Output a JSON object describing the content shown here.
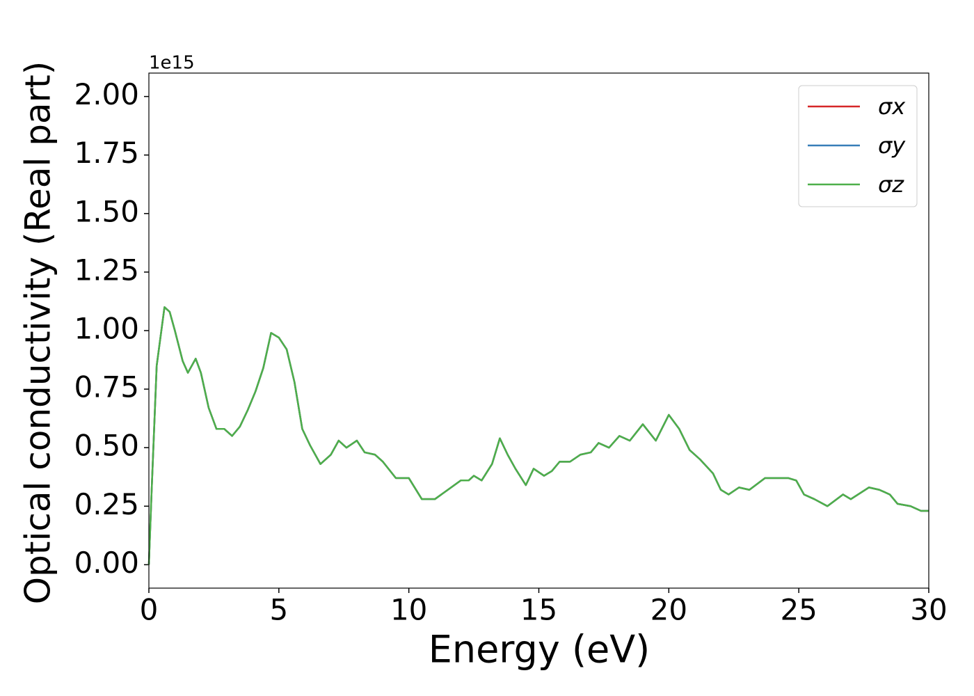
{
  "chart_data": {
    "type": "line",
    "xlabel": "Energy (eV)",
    "ylabel": "Optical conductivity (Real part)",
    "offset_label": "1e15",
    "x": [
      0,
      0.1,
      0.3,
      0.6,
      0.8,
      1.0,
      1.3,
      1.5,
      1.8,
      2.0,
      2.3,
      2.6,
      2.9,
      3.2,
      3.5,
      3.8,
      4.1,
      4.4,
      4.7,
      5.0,
      5.3,
      5.6,
      5.9,
      6.2,
      6.6,
      7.0,
      7.3,
      7.6,
      8.0,
      8.3,
      8.7,
      9.0,
      9.5,
      10.0,
      10.5,
      11.0,
      11.5,
      12.0,
      12.3,
      12.5,
      12.8,
      13.2,
      13.5,
      13.8,
      14.1,
      14.5,
      14.8,
      15.2,
      15.5,
      15.8,
      16.2,
      16.6,
      17.0,
      17.3,
      17.7,
      18.1,
      18.5,
      19.0,
      19.5,
      20.0,
      20.4,
      20.8,
      21.2,
      21.7,
      22.0,
      22.3,
      22.7,
      23.1,
      23.7,
      24.2,
      24.6,
      24.9,
      25.2,
      25.6,
      26.1,
      26.7,
      27.0,
      27.7,
      28.1,
      28.5,
      28.8,
      29.3,
      29.7,
      30.0
    ],
    "series": [
      {
        "name": "σx",
        "color": "#d62728",
        "values": [
          0,
          0.3,
          0.85,
          1.1,
          1.08,
          1.0,
          0.87,
          0.82,
          0.88,
          0.82,
          0.67,
          0.58,
          0.58,
          0.55,
          0.59,
          0.66,
          0.74,
          0.84,
          0.99,
          0.97,
          0.92,
          0.78,
          0.58,
          0.51,
          0.43,
          0.47,
          0.53,
          0.5,
          0.53,
          0.48,
          0.47,
          0.44,
          0.37,
          0.37,
          0.28,
          0.28,
          0.32,
          0.36,
          0.36,
          0.38,
          0.36,
          0.43,
          0.54,
          0.47,
          0.41,
          0.34,
          0.41,
          0.38,
          0.4,
          0.44,
          0.44,
          0.47,
          0.48,
          0.52,
          0.5,
          0.55,
          0.53,
          0.6,
          0.53,
          0.64,
          0.58,
          0.49,
          0.45,
          0.39,
          0.32,
          0.3,
          0.33,
          0.32,
          0.37,
          0.37,
          0.37,
          0.36,
          0.3,
          0.28,
          0.25,
          0.3,
          0.28,
          0.33,
          0.32,
          0.3,
          0.26,
          0.25,
          0.23,
          0.23
        ]
      },
      {
        "name": "σy",
        "color": "#377eb8",
        "values": [
          0,
          0.3,
          0.85,
          1.1,
          1.08,
          1.0,
          0.87,
          0.82,
          0.88,
          0.82,
          0.67,
          0.58,
          0.58,
          0.55,
          0.59,
          0.66,
          0.74,
          0.84,
          0.99,
          0.97,
          0.92,
          0.78,
          0.58,
          0.51,
          0.43,
          0.47,
          0.53,
          0.5,
          0.53,
          0.48,
          0.47,
          0.44,
          0.37,
          0.37,
          0.28,
          0.28,
          0.32,
          0.36,
          0.36,
          0.38,
          0.36,
          0.43,
          0.54,
          0.47,
          0.41,
          0.34,
          0.41,
          0.38,
          0.4,
          0.44,
          0.44,
          0.47,
          0.48,
          0.52,
          0.5,
          0.55,
          0.53,
          0.6,
          0.53,
          0.64,
          0.58,
          0.49,
          0.45,
          0.39,
          0.32,
          0.3,
          0.33,
          0.32,
          0.37,
          0.37,
          0.37,
          0.36,
          0.3,
          0.28,
          0.25,
          0.3,
          0.28,
          0.33,
          0.32,
          0.3,
          0.26,
          0.25,
          0.23,
          0.23
        ]
      },
      {
        "name": "σz",
        "color": "#4daf4a",
        "values": [
          0,
          0.3,
          0.85,
          1.1,
          1.08,
          1.0,
          0.87,
          0.82,
          0.88,
          0.82,
          0.67,
          0.58,
          0.58,
          0.55,
          0.59,
          0.66,
          0.74,
          0.84,
          0.99,
          0.97,
          0.92,
          0.78,
          0.58,
          0.51,
          0.43,
          0.47,
          0.53,
          0.5,
          0.53,
          0.48,
          0.47,
          0.44,
          0.37,
          0.37,
          0.28,
          0.28,
          0.32,
          0.36,
          0.36,
          0.38,
          0.36,
          0.43,
          0.54,
          0.47,
          0.41,
          0.34,
          0.41,
          0.38,
          0.4,
          0.44,
          0.44,
          0.47,
          0.48,
          0.52,
          0.5,
          0.55,
          0.53,
          0.6,
          0.53,
          0.64,
          0.58,
          0.49,
          0.45,
          0.39,
          0.32,
          0.3,
          0.33,
          0.32,
          0.37,
          0.37,
          0.37,
          0.36,
          0.3,
          0.28,
          0.25,
          0.3,
          0.28,
          0.33,
          0.32,
          0.3,
          0.26,
          0.25,
          0.23,
          0.23
        ]
      }
    ],
    "xlim": [
      0,
      30
    ],
    "xticks": [
      0,
      5,
      10,
      15,
      20,
      25,
      30
    ],
    "ylim": [
      -0.1,
      2.1
    ],
    "yticks": [
      {
        "value": 0,
        "label": "0.00"
      },
      {
        "value": 0.25,
        "label": "0.25"
      },
      {
        "value": 0.5,
        "label": "0.50"
      },
      {
        "value": 0.75,
        "label": "0.75"
      },
      {
        "value": 1.0,
        "label": "1.00"
      },
      {
        "value": 1.25,
        "label": "1.25"
      },
      {
        "value": 1.5,
        "label": "1.50"
      },
      {
        "value": 1.75,
        "label": "1.75"
      },
      {
        "value": 2.0,
        "label": "2.00"
      }
    ],
    "grid": false,
    "legend": "upper right"
  }
}
